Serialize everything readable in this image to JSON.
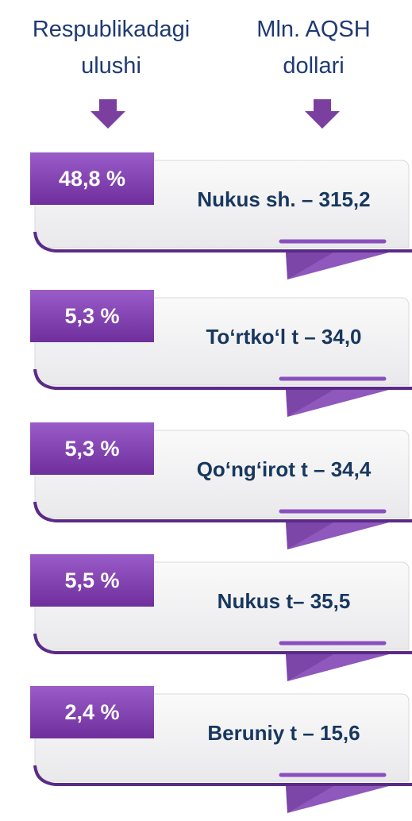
{
  "header": {
    "share": "Respublikadagi ulushi",
    "value": "Mln. AQSH dollari"
  },
  "cards": [
    {
      "percent": "48,8 %",
      "label": "Nukus sh. – 315,2"
    },
    {
      "percent": "5,3 %",
      "label": "To‘rtko‘l t – 34,0"
    },
    {
      "percent": "5,3 %",
      "label": "Qo‘ng‘irot t – 34,4"
    },
    {
      "percent": "5,5 %",
      "label": "Nukus t– 35,5"
    },
    {
      "percent": "2,4 %",
      "label": "Beruniy t – 15,6"
    }
  ]
}
